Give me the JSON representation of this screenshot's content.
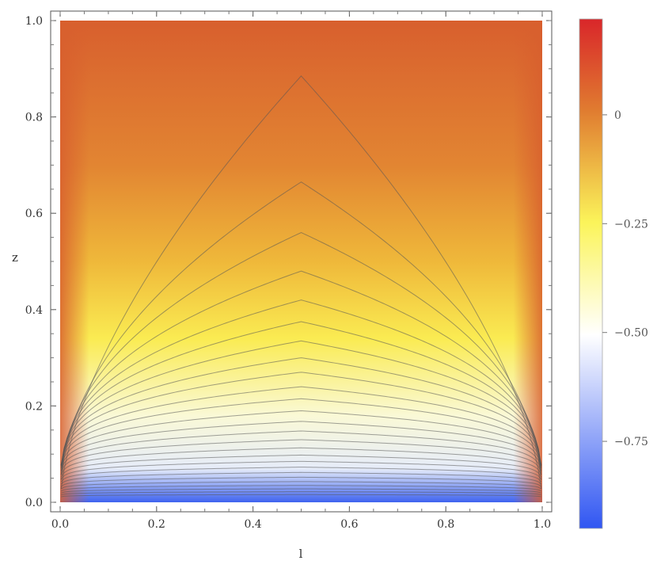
{
  "chart_data": {
    "type": "heatmap",
    "subtype": "density-contour",
    "xlabel": "l",
    "ylabel": "z",
    "xlim": [
      0.0,
      1.0
    ],
    "ylim": [
      0.0,
      1.0
    ],
    "x_ticks": [
      "0.0",
      "0.2",
      "0.4",
      "0.6",
      "0.8",
      "1.0"
    ],
    "y_ticks": [
      "0.0",
      "0.2",
      "0.4",
      "0.6",
      "0.8",
      "1.0"
    ],
    "colorbar": {
      "range": [
        -0.95,
        0.22
      ],
      "ticks": [
        {
          "value": 0,
          "label": "0"
        },
        {
          "value": -0.25,
          "label": "−0.25"
        },
        {
          "value": -0.5,
          "label": "−0.50"
        },
        {
          "value": -0.75,
          "label": "−0.75"
        }
      ],
      "colors": [
        "#3056f2",
        "#ffffff",
        "#fbf45a",
        "#e07c30",
        "#d9262a"
      ]
    },
    "contour_levels_at_center": [
      0.885,
      0.665,
      0.56,
      0.48,
      0.42,
      0.375,
      0.335,
      0.3,
      0.27,
      0.24,
      0.215,
      0.19,
      0.168,
      0.148,
      0.13,
      0.113,
      0.098,
      0.085,
      0.073,
      0.062,
      0.052,
      0.043,
      0.035,
      0.028,
      0.022,
      0.016
    ],
    "grid": false
  }
}
